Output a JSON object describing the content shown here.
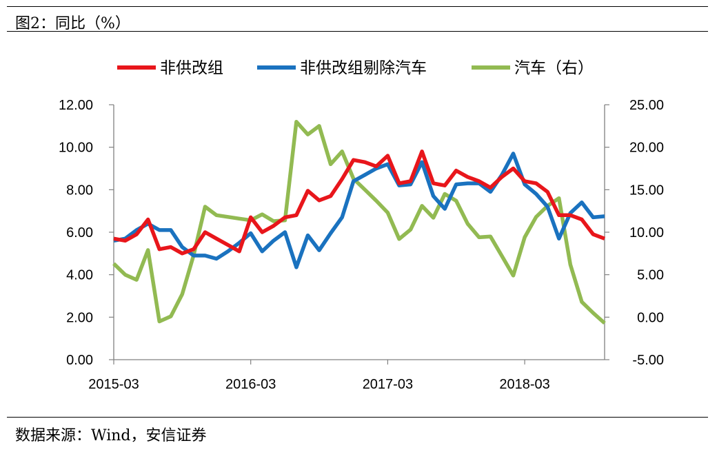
{
  "header": {
    "title": "图2：同比（%）"
  },
  "footer": {
    "source": "数据来源：Wind，安信证券"
  },
  "colors": {
    "red": "#e8161b",
    "blue": "#1a72bf",
    "green": "#92ba52",
    "axis": "#808080"
  },
  "chart_data": {
    "type": "line",
    "title": "图2：同比（%）",
    "legend_position": "top",
    "left_axis": {
      "ylim": [
        0,
        12
      ],
      "ticks": [
        0,
        2,
        4,
        6,
        8,
        10,
        12
      ],
      "tick_labels": [
        "0.00",
        "2.00",
        "4.00",
        "6.00",
        "8.00",
        "10.00",
        "12.00"
      ]
    },
    "right_axis": {
      "ylim": [
        -5,
        25
      ],
      "ticks": [
        -5,
        0,
        5,
        10,
        15,
        20,
        25
      ],
      "tick_labels": [
        "-5.00",
        "0.00",
        "5.00",
        "10.00",
        "15.00",
        "20.00",
        "25.00"
      ]
    },
    "x_ticks": [
      {
        "label": "2015-03",
        "index": 0
      },
      {
        "label": "2016-03",
        "index": 12
      },
      {
        "label": "2017-03",
        "index": 24
      },
      {
        "label": "2018-03",
        "index": 36
      }
    ],
    "x_count": 44,
    "series": [
      {
        "name": "非供改组",
        "axis": "left",
        "color": "#e8161b",
        "values": [
          5.7,
          5.6,
          5.9,
          6.6,
          5.2,
          5.3,
          5.0,
          5.2,
          6.0,
          5.7,
          5.4,
          5.1,
          6.7,
          6.0,
          6.3,
          6.7,
          6.8,
          7.95,
          7.5,
          7.7,
          8.5,
          9.4,
          9.3,
          9.1,
          9.6,
          8.3,
          8.4,
          9.8,
          8.3,
          8.2,
          8.9,
          8.6,
          8.4,
          8.1,
          8.6,
          9.0,
          8.4,
          8.3,
          7.9,
          6.8,
          6.8,
          6.6,
          5.9,
          5.7
        ]
      },
      {
        "name": "非供改组剔除汽车",
        "axis": "left",
        "color": "#1a72bf",
        "values": [
          5.6,
          5.7,
          6.1,
          6.4,
          6.1,
          6.1,
          5.3,
          4.9,
          4.9,
          4.75,
          5.1,
          5.5,
          5.95,
          5.1,
          5.6,
          6.0,
          4.35,
          5.85,
          5.15,
          5.95,
          6.7,
          8.4,
          8.7,
          9.0,
          9.2,
          8.2,
          8.25,
          9.3,
          7.7,
          7.1,
          8.25,
          8.3,
          8.3,
          7.9,
          8.7,
          9.7,
          8.25,
          7.8,
          7.2,
          5.7,
          6.9,
          7.4,
          6.7,
          6.75
        ]
      },
      {
        "name": "汽车（右）",
        "axis": "right",
        "color": "#92ba52",
        "values": [
          6.3,
          5.0,
          4.4,
          7.9,
          -0.5,
          0.1,
          2.7,
          7.3,
          13.0,
          12.0,
          11.8,
          11.6,
          11.4,
          12.1,
          11.3,
          11.4,
          23.0,
          21.5,
          22.5,
          18.0,
          19.5,
          16.3,
          15.0,
          13.7,
          12.3,
          9.2,
          10.3,
          13.1,
          11.7,
          14.5,
          13.7,
          11.0,
          9.4,
          9.5,
          7.2,
          4.9,
          9.4,
          11.8,
          13.1,
          14.0,
          6.2,
          1.8,
          0.5,
          -0.7
        ]
      }
    ]
  }
}
